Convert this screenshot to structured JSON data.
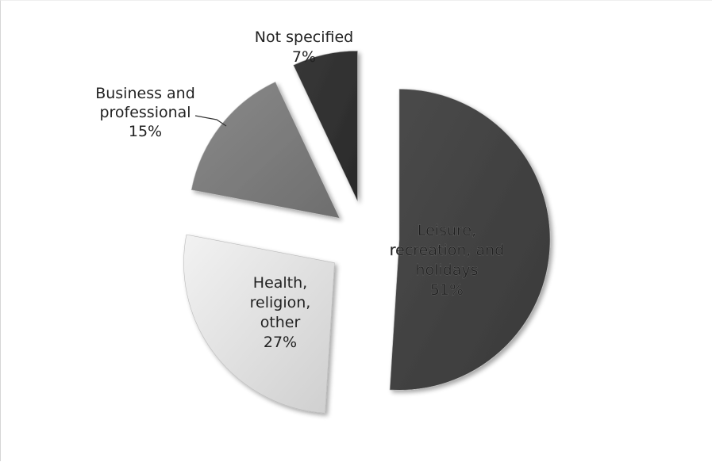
{
  "chart_data": {
    "type": "pie",
    "exploded": true,
    "slices": [
      {
        "label": "Leisure, recreation, and holidays",
        "value": 51,
        "percent_label": "51%",
        "color": "#444444"
      },
      {
        "label": "Health, religion, other",
        "value": 27,
        "percent_label": "27%",
        "color": "#d9d9d9"
      },
      {
        "label": "Business and professional",
        "value": 15,
        "percent_label": "15%",
        "color": "#7a7a7a"
      },
      {
        "label": "Not specified",
        "value": 7,
        "percent_label": "7%",
        "color": "#303030"
      }
    ],
    "label_lines": {
      "slice-0": [
        "Leisure,",
        "recreation, and",
        "holidays",
        "51%"
      ],
      "slice-1": [
        "Health,",
        "religion,",
        "other",
        "27%"
      ],
      "slice-2": [
        "Business and",
        "professional",
        "15%"
      ],
      "slice-3": [
        "Not specified",
        "7%"
      ]
    },
    "legend": "none"
  }
}
